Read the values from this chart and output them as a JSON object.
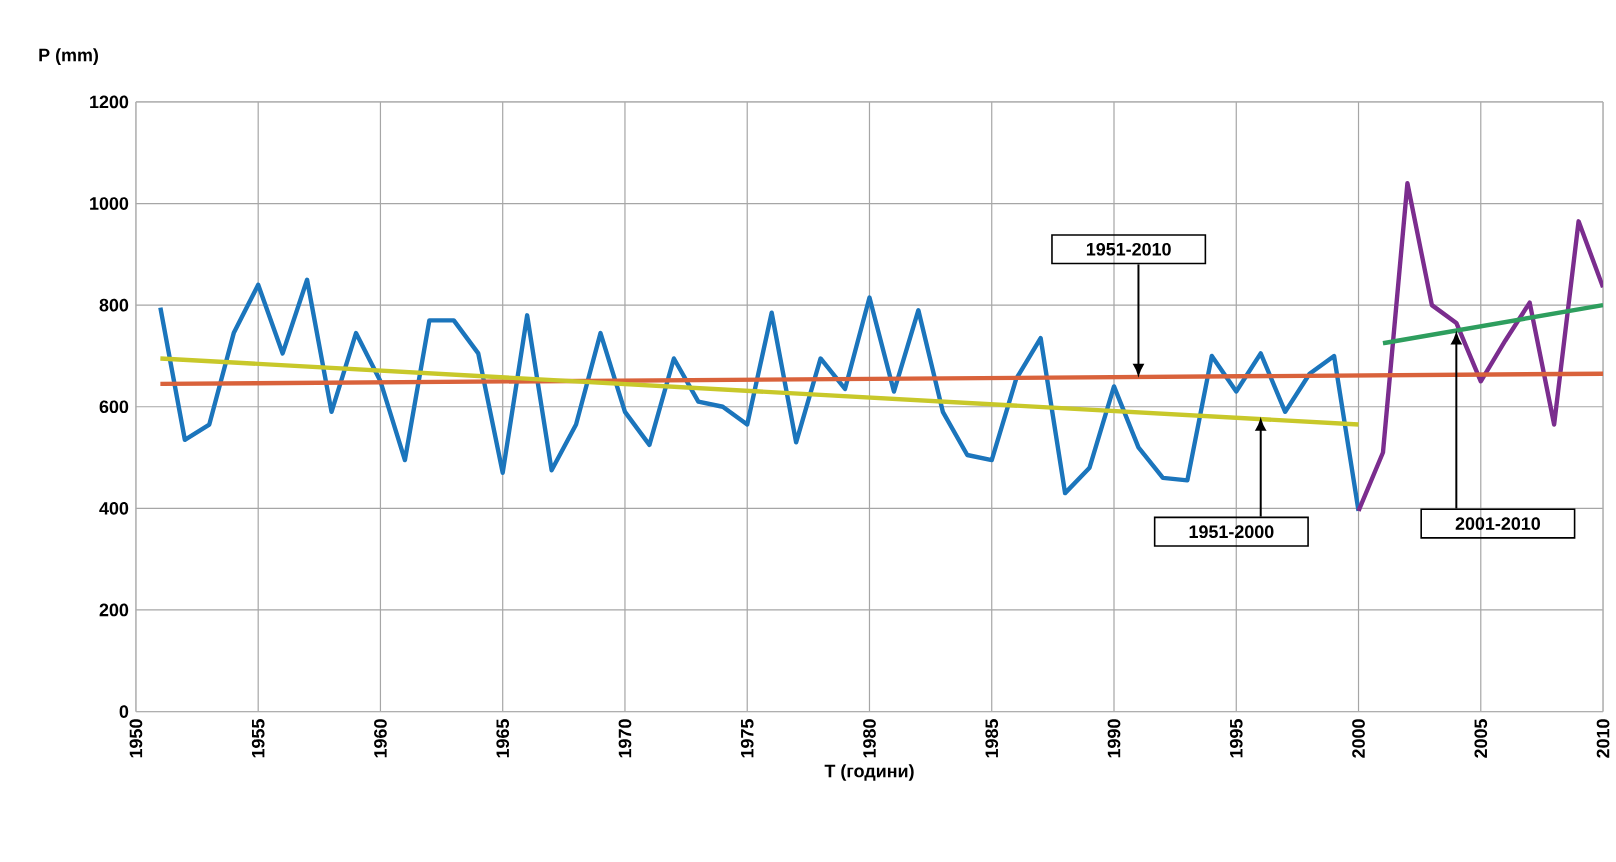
{
  "chart_data": {
    "type": "line",
    "xlabel": "T (години)",
    "ylabel": "P (mm)",
    "xlim": [
      1950,
      2010
    ],
    "xticks": [
      1950,
      1955,
      1960,
      1965,
      1970,
      1975,
      1980,
      1985,
      1990,
      1995,
      2000,
      2005,
      2010
    ],
    "ylim": [
      0,
      1200
    ],
    "yticks": [
      0,
      200,
      400,
      600,
      800,
      1000,
      1200
    ],
    "grid": true,
    "marker": "none",
    "line_style": "solid",
    "series": [
      {
        "color": "#1b75bc",
        "x": [
          1951,
          1952,
          1953,
          1954,
          1955,
          1956,
          1957,
          1958,
          1959,
          1960,
          1961,
          1962,
          1963,
          1964,
          1965,
          1966,
          1967,
          1968,
          1969,
          1970,
          1971,
          1972,
          1973,
          1974,
          1975,
          1976,
          1977,
          1978,
          1979,
          1980,
          1981,
          1982,
          1983,
          1984,
          1985,
          1986,
          1987,
          1988,
          1989,
          1990,
          1991,
          1992,
          1993,
          1994,
          1995,
          1996,
          1997,
          1998,
          1999,
          2000
        ],
        "values": [
          795,
          535,
          565,
          745,
          840,
          705,
          850,
          590,
          745,
          650,
          495,
          770,
          770,
          705,
          470,
          780,
          475,
          565,
          745,
          590,
          525,
          695,
          610,
          600,
          565,
          785,
          530,
          695,
          635,
          815,
          630,
          790,
          590,
          505,
          495,
          655,
          735,
          430,
          480,
          640,
          520,
          460,
          455,
          700,
          630,
          705,
          590,
          665,
          700,
          395
        ]
      },
      {
        "color": "#7b2d8e",
        "x": [
          2000,
          2001,
          2002,
          2003,
          2004,
          2005,
          2006,
          2007,
          2008,
          2009,
          2010
        ],
        "values": [
          395,
          510,
          1040,
          800,
          765,
          650,
          730,
          805,
          565,
          965,
          835
        ]
      },
      {
        "color": "#d9623b",
        "x": [
          1951,
          2010
        ],
        "values": [
          645,
          665
        ]
      },
      {
        "color": "#c8c82a",
        "x": [
          1951,
          2000
        ],
        "values": [
          695,
          565
        ]
      },
      {
        "color": "#2e9e5e",
        "x": [
          2001,
          2010
        ],
        "values": [
          725,
          800
        ]
      }
    ],
    "annotations": [
      {
        "text": "1951-2010",
        "x": 1991,
        "y": 657
      },
      {
        "text": "1951-2000",
        "x": 1996,
        "y": 580
      },
      {
        "text": "2001-2010",
        "x": 2004,
        "y": 750
      }
    ]
  }
}
